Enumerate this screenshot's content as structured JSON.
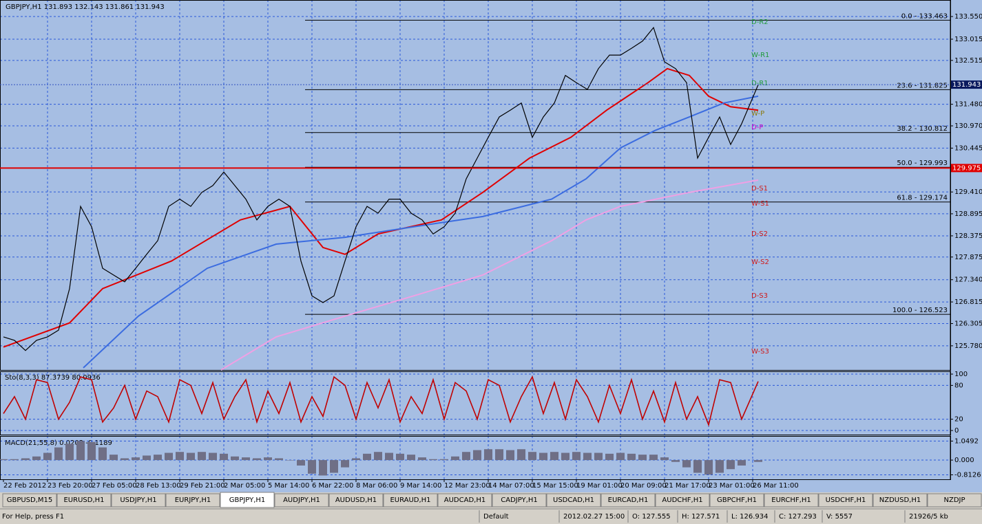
{
  "chart_data": [
    {
      "type": "line",
      "title": "GBPJPY,H1  131.893 132.143 131.861 131.943",
      "x": [
        0,
        8,
        16,
        24,
        32,
        40,
        48,
        56,
        64,
        72,
        80,
        88,
        96,
        104,
        112,
        120,
        128,
        136,
        144,
        152,
        160,
        168,
        176,
        184,
        192,
        200,
        208,
        216,
        224,
        232,
        240,
        248,
        256,
        264,
        272,
        280,
        288,
        296,
        304,
        312,
        320,
        328,
        336,
        344,
        352,
        360,
        368,
        376,
        384,
        392,
        400,
        408,
        416,
        424,
        432,
        440,
        448,
        456,
        464,
        472,
        480,
        488,
        496,
        504,
        512,
        520,
        528,
        536,
        548
      ],
      "values": [
        125.99,
        125.91,
        125.67,
        125.91,
        125.99,
        126.15,
        127.13,
        129.07,
        128.59,
        127.61,
        127.45,
        127.29,
        127.61,
        127.94,
        128.26,
        129.07,
        129.24,
        129.07,
        129.4,
        129.56,
        129.88,
        129.56,
        129.24,
        128.75,
        129.07,
        129.24,
        129.07,
        127.78,
        126.96,
        126.8,
        126.96,
        127.78,
        128.59,
        129.07,
        128.91,
        129.24,
        129.24,
        128.91,
        128.75,
        128.42,
        128.59,
        128.91,
        129.72,
        130.21,
        130.7,
        131.18,
        131.34,
        131.51,
        130.7,
        131.18,
        131.51,
        132.16,
        131.99,
        131.83,
        132.32,
        132.64,
        132.64,
        132.8,
        132.97,
        133.29,
        132.48,
        132.32,
        131.99,
        130.21,
        130.7,
        131.18,
        130.53,
        131.02,
        131.94
      ],
      "color": "#000000",
      "series": [
        {
          "color": "#e00000",
          "x": [
            0,
            48,
            72,
            122,
            172,
            208,
            232,
            248,
            272,
            318,
            348,
            382,
            412,
            438,
            468,
            482,
            498,
            512,
            528,
            548
          ],
          "values": [
            125.75,
            126.32,
            127.13,
            127.78,
            128.75,
            129.07,
            128.1,
            127.94,
            128.42,
            128.75,
            129.4,
            130.21,
            130.7,
            131.34,
            131.99,
            132.32,
            132.16,
            131.67,
            131.42,
            131.34
          ]
        },
        {
          "color": "#3b6ce0",
          "x": [
            58,
            98,
            148,
            198,
            248,
            298,
            348,
            398,
            423,
            448,
            473,
            498,
            523,
            548
          ],
          "values": [
            125.26,
            126.48,
            127.61,
            128.18,
            128.34,
            128.59,
            128.83,
            129.24,
            129.72,
            130.45,
            130.86,
            131.18,
            131.51,
            131.67
          ]
        },
        {
          "color": "#f0a0e4",
          "x": [
            158,
            198,
            248,
            298,
            348,
            398,
            423,
            448,
            498,
            548
          ],
          "values": [
            125.21,
            125.99,
            126.48,
            126.96,
            127.45,
            128.26,
            128.75,
            129.07,
            129.4,
            129.69
          ]
        }
      ],
      "xlim": [
        -2.5,
        687.5
      ],
      "ylim": [
        125.21,
        133.94
      ],
      "yticks": [
        {
          "value": 133.55,
          "label": "133.550"
        },
        133.015,
        132.515,
        {
          "value": 131.48,
          "label": "131.480"
        },
        {
          "value": 130.97,
          "label": "130.970"
        },
        130.445,
        {
          "value": 129.41,
          "label": "129.410"
        },
        128.895,
        128.375,
        127.875,
        {
          "value": 127.34,
          "label": "127.340"
        },
        126.815,
        126.305,
        {
          "value": 125.78,
          "label": "125.780"
        }
      ],
      "current_price": 131.943,
      "hline": 129.975,
      "fib_levels": [
        {
          "label": "0.0 - 133.463",
          "value": 133.463
        },
        {
          "label": "23.6 - 131.825",
          "value": 131.825
        },
        {
          "label": "38.2 - 130.812",
          "value": 130.812
        },
        {
          "label": "50.0 - 129.993",
          "value": 129.993
        },
        {
          "label": "61.8 - 129.174",
          "value": 129.174
        },
        {
          "label": "100.0 - 126.523",
          "value": 126.523
        }
      ],
      "pivots": [
        "D-R2",
        "W-R1",
        "D-R1",
        "W-P",
        "D-P",
        "D-S1",
        "W-S1",
        "D-S2",
        "W-S2",
        "D-S3",
        "W-S3"
      ],
      "grid": true,
      "xlabels": [
        "22 Feb 2012",
        "23 Feb 20:00",
        "27 Feb 05:00",
        "28 Feb 13:00",
        "29 Feb 21:00",
        "2 Mar 05:00",
        "5 Mar 14:00",
        "6 Mar 22:00",
        "8 Mar 06:00",
        "9 Mar 14:00",
        "12 Mar 23:00",
        "14 Mar 07:00",
        "15 Mar 15:00",
        "19 Mar 01:00",
        "20 Mar 09:00",
        "21 Mar 17:00",
        "23 Mar 01:00",
        "26 Mar 11:00"
      ]
    },
    {
      "type": "line",
      "title": "Sto(8,3,3) 87.3739 80.0936",
      "color": "#c00000",
      "values": [
        30,
        60,
        20,
        90,
        85,
        20,
        50,
        95,
        90,
        15,
        40,
        80,
        20,
        70,
        60,
        15,
        90,
        80,
        30,
        85,
        20,
        60,
        90,
        15,
        70,
        30,
        85,
        15,
        60,
        25,
        95,
        80,
        20,
        85,
        40,
        90,
        15,
        60,
        30,
        90,
        20,
        85,
        70,
        20,
        90,
        80,
        15,
        60,
        95,
        30,
        85,
        20,
        90,
        60,
        15,
        80,
        30,
        90,
        20,
        70,
        15,
        85,
        20,
        60,
        10,
        90,
        85,
        20,
        87
      ],
      "ylim": [
        -7.3,
        104.9
      ],
      "yticks": [
        100,
        80,
        20,
        0
      ]
    },
    {
      "type": "bar",
      "title": "MACD(21,55,8) 0.0202 -0.1189",
      "color": "#6f6f86",
      "values": [
        0.05,
        0.05,
        0.1,
        0.2,
        0.4,
        0.7,
        0.9,
        1.05,
        1.0,
        0.7,
        0.3,
        0.1,
        0.15,
        0.25,
        0.3,
        0.4,
        0.45,
        0.4,
        0.45,
        0.4,
        0.35,
        0.2,
        0.15,
        0.1,
        0.15,
        0.1,
        0.0,
        -0.3,
        -0.75,
        -0.85,
        -0.7,
        -0.4,
        0.1,
        0.35,
        0.45,
        0.4,
        0.35,
        0.3,
        0.15,
        0.05,
        0.05,
        0.2,
        0.45,
        0.55,
        0.6,
        0.6,
        0.55,
        0.6,
        0.45,
        0.4,
        0.45,
        0.4,
        0.45,
        0.4,
        0.4,
        0.35,
        0.4,
        0.35,
        0.3,
        0.3,
        0.15,
        -0.1,
        -0.4,
        -0.7,
        -0.8,
        -0.7,
        -0.5,
        -0.3,
        -0.1
      ],
      "ylim": [
        -1.06,
        1.33
      ],
      "yticks": [
        1.0492,
        {
          "value": 0,
          "label": "0.000"
        },
        -0.8126
      ]
    }
  ],
  "tabs": [
    "GBPUSD,M15",
    "EURUSD,H1",
    "USDJPY,H1",
    "EURJPY,H1",
    "GBPJPY,H1",
    "AUDJPY,H1",
    "AUDUSD,H1",
    "EURAUD,H1",
    "AUDCAD,H1",
    "CADJPY,H1",
    "USDCAD,H1",
    "EURCAD,H1",
    "AUDCHF,H1",
    "GBPCHF,H1",
    "EURCHF,H1",
    "USDCHF,H1",
    "NZDUSD,H1",
    "NZDJP"
  ],
  "status": [
    "For Help, press F1",
    "Default",
    "2012.02.27 15:00",
    "O: 127.555",
    "H: 127.571",
    "L: 126.934",
    "C: 127.293",
    "V: 5557",
    "21926/5 kb"
  ]
}
